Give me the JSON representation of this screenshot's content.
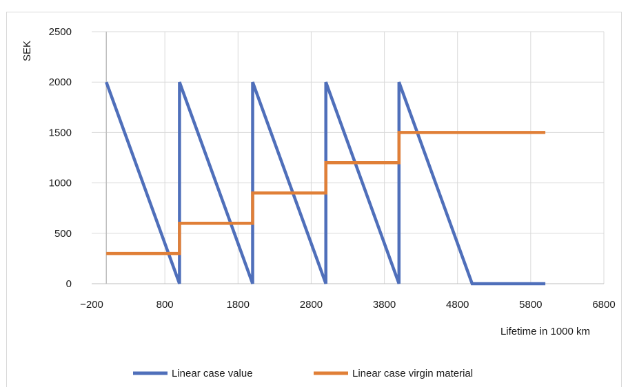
{
  "chart_data": {
    "type": "line",
    "title": "",
    "xlabel": "Lifetime in 1000 km",
    "ylabel": "SEK",
    "xlim": [
      -200,
      6800
    ],
    "ylim": [
      0,
      2500
    ],
    "x_ticks": [
      -200,
      800,
      1800,
      2800,
      3800,
      4800,
      5800,
      6800
    ],
    "x_tick_labels": [
      "−200",
      "800",
      "1800",
      "2800",
      "3800",
      "4800",
      "5800",
      "6800"
    ],
    "y_ticks": [
      0,
      500,
      1000,
      1500,
      2000,
      2500
    ],
    "grid": true,
    "legend_position": "bottom",
    "series": [
      {
        "name": "Linear case value",
        "color": "#4f6fba",
        "points": [
          [
            0,
            2000
          ],
          [
            1000,
            0
          ],
          [
            1000,
            2000
          ],
          [
            2000,
            0
          ],
          [
            2000,
            2000
          ],
          [
            3000,
            0
          ],
          [
            3000,
            2000
          ],
          [
            4000,
            0
          ],
          [
            4000,
            2000
          ],
          [
            5000,
            0
          ],
          [
            6000,
            0
          ]
        ]
      },
      {
        "name": "Linear case virgin material",
        "color": "#e07f37",
        "points": [
          [
            0,
            300
          ],
          [
            1000,
            300
          ],
          [
            1000,
            600
          ],
          [
            2000,
            600
          ],
          [
            2000,
            900
          ],
          [
            3000,
            900
          ],
          [
            3000,
            1200
          ],
          [
            4000,
            1200
          ],
          [
            4000,
            1500
          ],
          [
            5000,
            1500
          ],
          [
            6000,
            1500
          ]
        ]
      }
    ]
  }
}
